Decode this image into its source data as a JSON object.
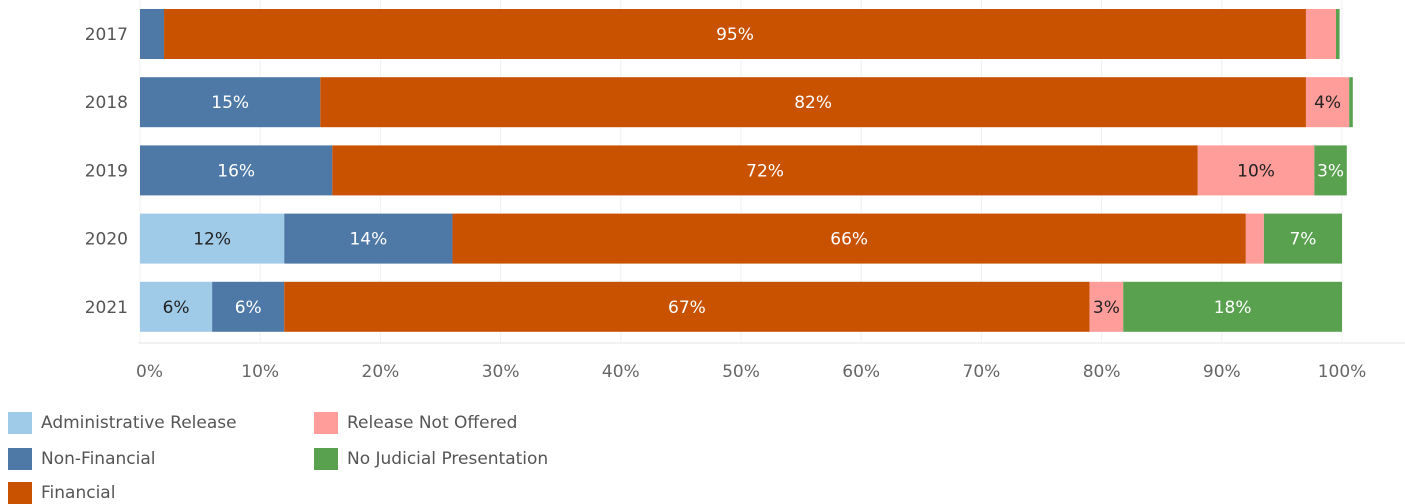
{
  "chart_data": {
    "type": "bar",
    "orientation": "horizontal",
    "stacked": "percent",
    "categories": [
      "2017",
      "2018",
      "2019",
      "2020",
      "2021"
    ],
    "series": [
      {
        "name": "Administrative Release",
        "color": "#a0cbe8",
        "values": [
          0,
          0,
          0,
          12,
          6
        ],
        "labels": [
          "",
          "",
          "",
          "12%",
          "6%"
        ],
        "label_color": "#222222"
      },
      {
        "name": "Non-Financial",
        "color": "#4e79a7",
        "values": [
          2,
          15,
          16,
          14,
          6
        ],
        "labels": [
          "",
          "15%",
          "16%",
          "14%",
          "6%"
        ],
        "label_color": "#ffffff"
      },
      {
        "name": "Financial",
        "color": "#c85200",
        "values": [
          95,
          82,
          72,
          66,
          67
        ],
        "labels": [
          "95%",
          "82%",
          "72%",
          "66%",
          "67%"
        ],
        "label_color": "#ffffff"
      },
      {
        "name": "Release Not Offered",
        "color": "#ff9d9a",
        "values": [
          2.5,
          3.6,
          9.7,
          1.5,
          2.8
        ],
        "labels": [
          "",
          "4%",
          "10%",
          "",
          "3%"
        ],
        "label_color": "#222222"
      },
      {
        "name": "No Judicial Presentation",
        "color": "#59a14f",
        "values": [
          0.3,
          0.3,
          2.7,
          6.5,
          18.2
        ],
        "labels": [
          "",
          "",
          "3%",
          "7%",
          "18%"
        ],
        "label_color": "#ffffff"
      }
    ],
    "xlim": [
      0,
      100
    ],
    "xticks": [
      "0%",
      "10%",
      "20%",
      "30%",
      "40%",
      "50%",
      "60%",
      "70%",
      "80%",
      "90%",
      "100%"
    ],
    "grid": true,
    "legend_position": "bottom-left"
  },
  "legend": {
    "items": [
      {
        "label": "Administrative Release",
        "color": "#a0cbe8"
      },
      {
        "label": "Non-Financial",
        "color": "#4e79a7"
      },
      {
        "label": "Financial",
        "color": "#c85200"
      },
      {
        "label": "Release Not Offered",
        "color": "#ff9d9a"
      },
      {
        "label": "No Judicial Presentation",
        "color": "#59a14f"
      }
    ]
  }
}
